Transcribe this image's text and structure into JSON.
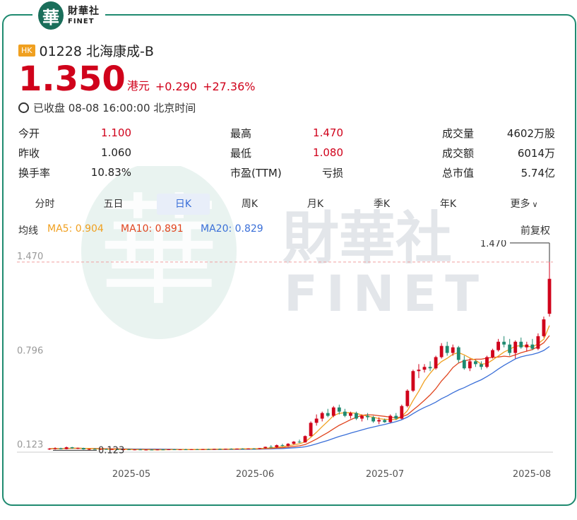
{
  "header": {
    "logo_cn": "財華社",
    "logo_en": "FINET",
    "logo_glyph": "華"
  },
  "stock": {
    "market_badge": "HK",
    "title": "01228 北海康成-B",
    "price": "1.350",
    "unit": "港元",
    "change": "+0.290",
    "change_pct": "+27.36%",
    "status": "已收盘 08-08 16:00:00 北京时间"
  },
  "stats": {
    "open_label": "今开",
    "open": "1.100",
    "prev_label": "昨收",
    "prev": "1.060",
    "turnover_label": "换手率",
    "turnover": "10.83%",
    "high_label": "最高",
    "high": "1.470",
    "low_label": "最低",
    "low": "1.080",
    "pe_label": "市盈(TTM)",
    "pe": "亏损",
    "volume_label": "成交量",
    "volume": "4602万股",
    "amount_label": "成交额",
    "amount": "6014万",
    "mcap_label": "总市值",
    "mcap": "5.74亿"
  },
  "tabs": [
    "分时",
    "五日",
    "日K",
    "周K",
    "月K",
    "季K",
    "年K",
    "更多"
  ],
  "active_tab": "日K",
  "ma": {
    "label": "均线",
    "ma5": "MA5: 0.904",
    "ma10": "MA10: 0.891",
    "ma20": "MA20: 0.829",
    "adjust": "前复权"
  },
  "colors": {
    "up": "#d0021b",
    "down": "#1f8a70",
    "ma5": "#f0a020",
    "ma10": "#e0451f",
    "ma20": "#3a6fd8",
    "border": "#1f8a70"
  },
  "chart_data": {
    "type": "candlestick",
    "y_labels": [
      "1.470",
      "0.796",
      "0.123"
    ],
    "max_label": "1.470",
    "min_label": "0.123",
    "x_ticks": [
      "2025-05",
      "2025-06",
      "2025-07",
      "2025-08"
    ],
    "ylim": [
      0.11,
      1.5
    ],
    "candles": [
      [
        0.13,
        0.14,
        0.125,
        0.135
      ],
      [
        0.135,
        0.145,
        0.128,
        0.138
      ],
      [
        0.138,
        0.142,
        0.13,
        0.132
      ],
      [
        0.132,
        0.15,
        0.13,
        0.145
      ],
      [
        0.145,
        0.148,
        0.135,
        0.138
      ],
      [
        0.138,
        0.143,
        0.132,
        0.14
      ],
      [
        0.14,
        0.142,
        0.128,
        0.13
      ],
      [
        0.13,
        0.135,
        0.125,
        0.133
      ],
      [
        0.133,
        0.138,
        0.128,
        0.13
      ],
      [
        0.13,
        0.134,
        0.126,
        0.132
      ],
      [
        0.132,
        0.136,
        0.127,
        0.129
      ],
      [
        0.129,
        0.133,
        0.125,
        0.131
      ],
      [
        0.131,
        0.134,
        0.126,
        0.128
      ],
      [
        0.128,
        0.132,
        0.124,
        0.13
      ],
      [
        0.13,
        0.133,
        0.126,
        0.127
      ],
      [
        0.127,
        0.131,
        0.124,
        0.129
      ],
      [
        0.129,
        0.132,
        0.125,
        0.126
      ],
      [
        0.126,
        0.13,
        0.123,
        0.128
      ],
      [
        0.128,
        0.131,
        0.125,
        0.127
      ],
      [
        0.127,
        0.13,
        0.124,
        0.129
      ],
      [
        0.129,
        0.132,
        0.126,
        0.127
      ],
      [
        0.127,
        0.131,
        0.125,
        0.13
      ],
      [
        0.13,
        0.133,
        0.127,
        0.128
      ],
      [
        0.128,
        0.131,
        0.125,
        0.13
      ],
      [
        0.13,
        0.134,
        0.127,
        0.129
      ],
      [
        0.129,
        0.132,
        0.126,
        0.131
      ],
      [
        0.131,
        0.134,
        0.128,
        0.13
      ],
      [
        0.13,
        0.133,
        0.127,
        0.132
      ],
      [
        0.132,
        0.135,
        0.129,
        0.131
      ],
      [
        0.131,
        0.134,
        0.128,
        0.133
      ],
      [
        0.133,
        0.136,
        0.13,
        0.132
      ],
      [
        0.132,
        0.135,
        0.129,
        0.134
      ],
      [
        0.134,
        0.137,
        0.131,
        0.133
      ],
      [
        0.133,
        0.136,
        0.13,
        0.135
      ],
      [
        0.135,
        0.138,
        0.132,
        0.134
      ],
      [
        0.134,
        0.137,
        0.131,
        0.136
      ],
      [
        0.136,
        0.139,
        0.133,
        0.135
      ],
      [
        0.135,
        0.14,
        0.132,
        0.139
      ],
      [
        0.139,
        0.15,
        0.136,
        0.148
      ],
      [
        0.148,
        0.16,
        0.142,
        0.145
      ],
      [
        0.145,
        0.165,
        0.14,
        0.16
      ],
      [
        0.16,
        0.17,
        0.15,
        0.155
      ],
      [
        0.155,
        0.175,
        0.15,
        0.17
      ],
      [
        0.17,
        0.19,
        0.165,
        0.185
      ],
      [
        0.185,
        0.2,
        0.175,
        0.18
      ],
      [
        0.18,
        0.23,
        0.178,
        0.225
      ],
      [
        0.225,
        0.33,
        0.22,
        0.32
      ],
      [
        0.32,
        0.38,
        0.3,
        0.35
      ],
      [
        0.35,
        0.4,
        0.33,
        0.39
      ],
      [
        0.39,
        0.42,
        0.36,
        0.37
      ],
      [
        0.37,
        0.44,
        0.36,
        0.43
      ],
      [
        0.43,
        0.45,
        0.38,
        0.4
      ],
      [
        0.4,
        0.42,
        0.36,
        0.37
      ],
      [
        0.37,
        0.4,
        0.35,
        0.39
      ],
      [
        0.39,
        0.4,
        0.34,
        0.35
      ],
      [
        0.35,
        0.38,
        0.33,
        0.37
      ],
      [
        0.37,
        0.39,
        0.34,
        0.36
      ],
      [
        0.36,
        0.37,
        0.32,
        0.33
      ],
      [
        0.33,
        0.36,
        0.31,
        0.34
      ],
      [
        0.34,
        0.35,
        0.32,
        0.325
      ],
      [
        0.325,
        0.38,
        0.32,
        0.37
      ],
      [
        0.37,
        0.39,
        0.34,
        0.35
      ],
      [
        0.35,
        0.45,
        0.345,
        0.44
      ],
      [
        0.44,
        0.56,
        0.43,
        0.55
      ],
      [
        0.55,
        0.7,
        0.54,
        0.69
      ],
      [
        0.69,
        0.74,
        0.64,
        0.7
      ],
      [
        0.7,
        0.74,
        0.68,
        0.72
      ],
      [
        0.72,
        0.76,
        0.69,
        0.71
      ],
      [
        0.71,
        0.8,
        0.7,
        0.79
      ],
      [
        0.79,
        0.89,
        0.78,
        0.87
      ],
      [
        0.87,
        0.9,
        0.8,
        0.82
      ],
      [
        0.82,
        0.88,
        0.8,
        0.86
      ],
      [
        0.86,
        0.87,
        0.75,
        0.77
      ],
      [
        0.77,
        0.8,
        0.7,
        0.71
      ],
      [
        0.71,
        0.78,
        0.69,
        0.76
      ],
      [
        0.76,
        0.77,
        0.72,
        0.74
      ],
      [
        0.74,
        0.76,
        0.7,
        0.72
      ],
      [
        0.72,
        0.8,
        0.71,
        0.79
      ],
      [
        0.79,
        0.85,
        0.78,
        0.84
      ],
      [
        0.84,
        0.92,
        0.83,
        0.9
      ],
      [
        0.9,
        0.94,
        0.86,
        0.88
      ],
      [
        0.88,
        0.92,
        0.8,
        0.82
      ],
      [
        0.82,
        0.91,
        0.78,
        0.9
      ],
      [
        0.9,
        0.93,
        0.85,
        0.86
      ],
      [
        0.86,
        0.9,
        0.83,
        0.88
      ],
      [
        0.88,
        0.92,
        0.84,
        0.85
      ],
      [
        0.85,
        0.96,
        0.84,
        0.94
      ],
      [
        0.94,
        1.08,
        0.93,
        1.06
      ],
      [
        1.1,
        1.47,
        1.08,
        1.35
      ]
    ]
  }
}
